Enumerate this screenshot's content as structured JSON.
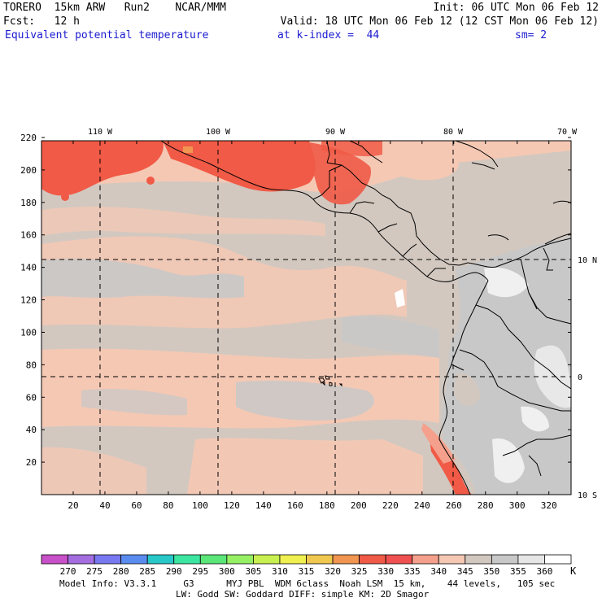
{
  "header": {
    "line1_left": "TORERO  15km ARW   Run2    NCAR/MMM",
    "line1_right": "Init: 06 UTC Mon 06 Feb 12",
    "line2_left": "Fcst:   12 h",
    "line2_right": "Valid: 18 UTC Mon 06 Feb 12 (12 CST Mon 06 Feb 12)",
    "field_name": "Equivalent potential temperature",
    "field_level": "at k-index =  44",
    "smoothing": "sm= 2"
  },
  "map": {
    "lon_labels": [
      "110 W",
      "100 W",
      "90 W",
      "80 W",
      "70 W"
    ],
    "lat_labels": [
      "10 N",
      "0",
      "10 S"
    ],
    "grid_y_ticks": [
      "220",
      "200",
      "180",
      "160",
      "140",
      "120",
      "100",
      "80",
      "60",
      "40",
      "20"
    ],
    "grid_x_ticks": [
      "20",
      "40",
      "60",
      "80",
      "100",
      "120",
      "140",
      "160",
      "180",
      "200",
      "220",
      "240",
      "260",
      "280",
      "300",
      "320"
    ]
  },
  "colorbar": {
    "unit": "K",
    "labels": [
      "270",
      "275",
      "280",
      "285",
      "290",
      "295",
      "300",
      "305",
      "310",
      "315",
      "320",
      "325",
      "330",
      "335",
      "340",
      "345",
      "350",
      "355",
      "360"
    ],
    "colors": [
      "#c850c8",
      "#a46ee0",
      "#7878f0",
      "#5a8cf0",
      "#28c8c8",
      "#3ce6a0",
      "#5ae678",
      "#96f064",
      "#c8f050",
      "#f0f050",
      "#f0c850",
      "#f09650",
      "#f05a46",
      "#f05050",
      "#f5a08c",
      "#f5c8b4",
      "#d2c8c0",
      "#c8c8c8",
      "#e6e6e6",
      "#ffffff"
    ]
  },
  "footer": {
    "line1": "Model Info: V3.3.1     G3      MYJ PBL  WDM 6class  Noah LSM  15 km,    44 levels,   105 sec",
    "line2": "LW: Godd SW: Goddard DIFF: simple KM: 2D Smagor"
  }
}
